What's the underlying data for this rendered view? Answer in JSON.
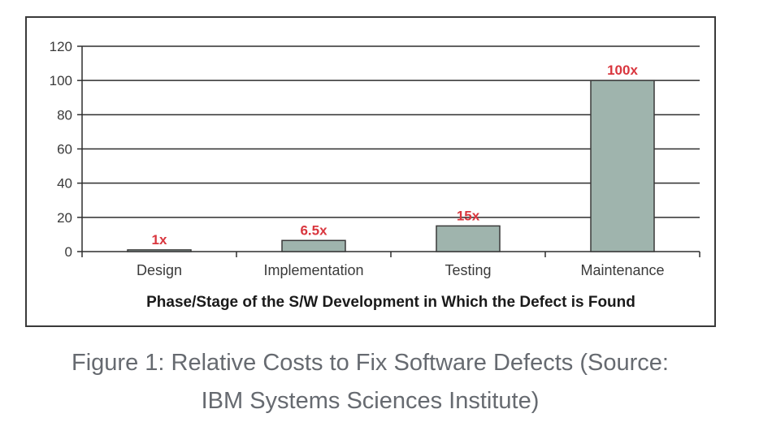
{
  "chart_data": {
    "type": "bar",
    "categories": [
      "Design",
      "Implementation",
      "Testing",
      "Maintenance"
    ],
    "values": [
      1,
      6.5,
      15,
      100
    ],
    "data_labels": [
      "1x",
      "6.5x",
      "15x",
      "100x"
    ],
    "title": "",
    "xlabel": "Phase/Stage of the S/W Development in Which the Defect is Found",
    "ylabel": "",
    "ylim": [
      0,
      120
    ],
    "yticks": [
      0,
      20,
      40,
      60,
      80,
      100,
      120
    ],
    "grid": true,
    "legend": "none",
    "colors": {
      "bar_fill": "#9fb4ad",
      "bar_stroke": "#3a3a3a",
      "data_label": "#d9363e",
      "gridline": "#2e2e2e",
      "axis": "#2e2e2e",
      "tick_label": "#3a3a3a"
    }
  },
  "caption": {
    "line1": "Figure 1: Relative Costs to Fix Software Defects (Source:",
    "line2": "IBM Systems Sciences Institute)",
    "color": "#666a70"
  }
}
